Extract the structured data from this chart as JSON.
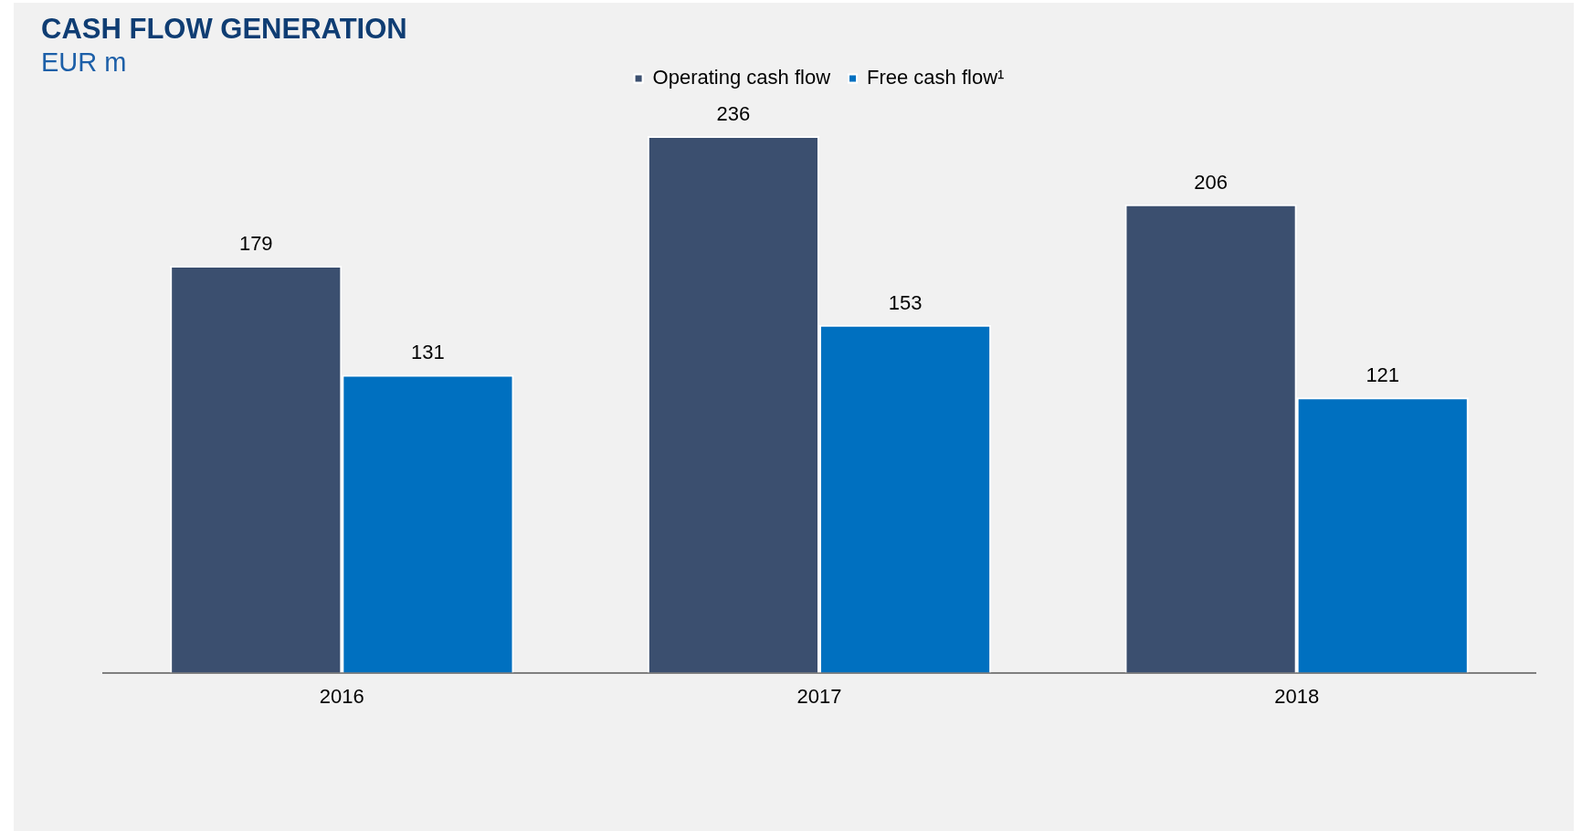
{
  "chart_data": {
    "type": "bar",
    "title": "CASH FLOW GENERATION",
    "subtitle": "EUR m",
    "categories": [
      "2016",
      "2017",
      "2018"
    ],
    "series": [
      {
        "name": "Operating cash flow",
        "color": "#3b4f6f",
        "values": [
          179,
          236,
          206
        ]
      },
      {
        "name": "Free cash flow¹",
        "color": "#0070c0",
        "values": [
          131,
          153,
          121
        ]
      }
    ],
    "legend": "top",
    "data_labels": true
  }
}
